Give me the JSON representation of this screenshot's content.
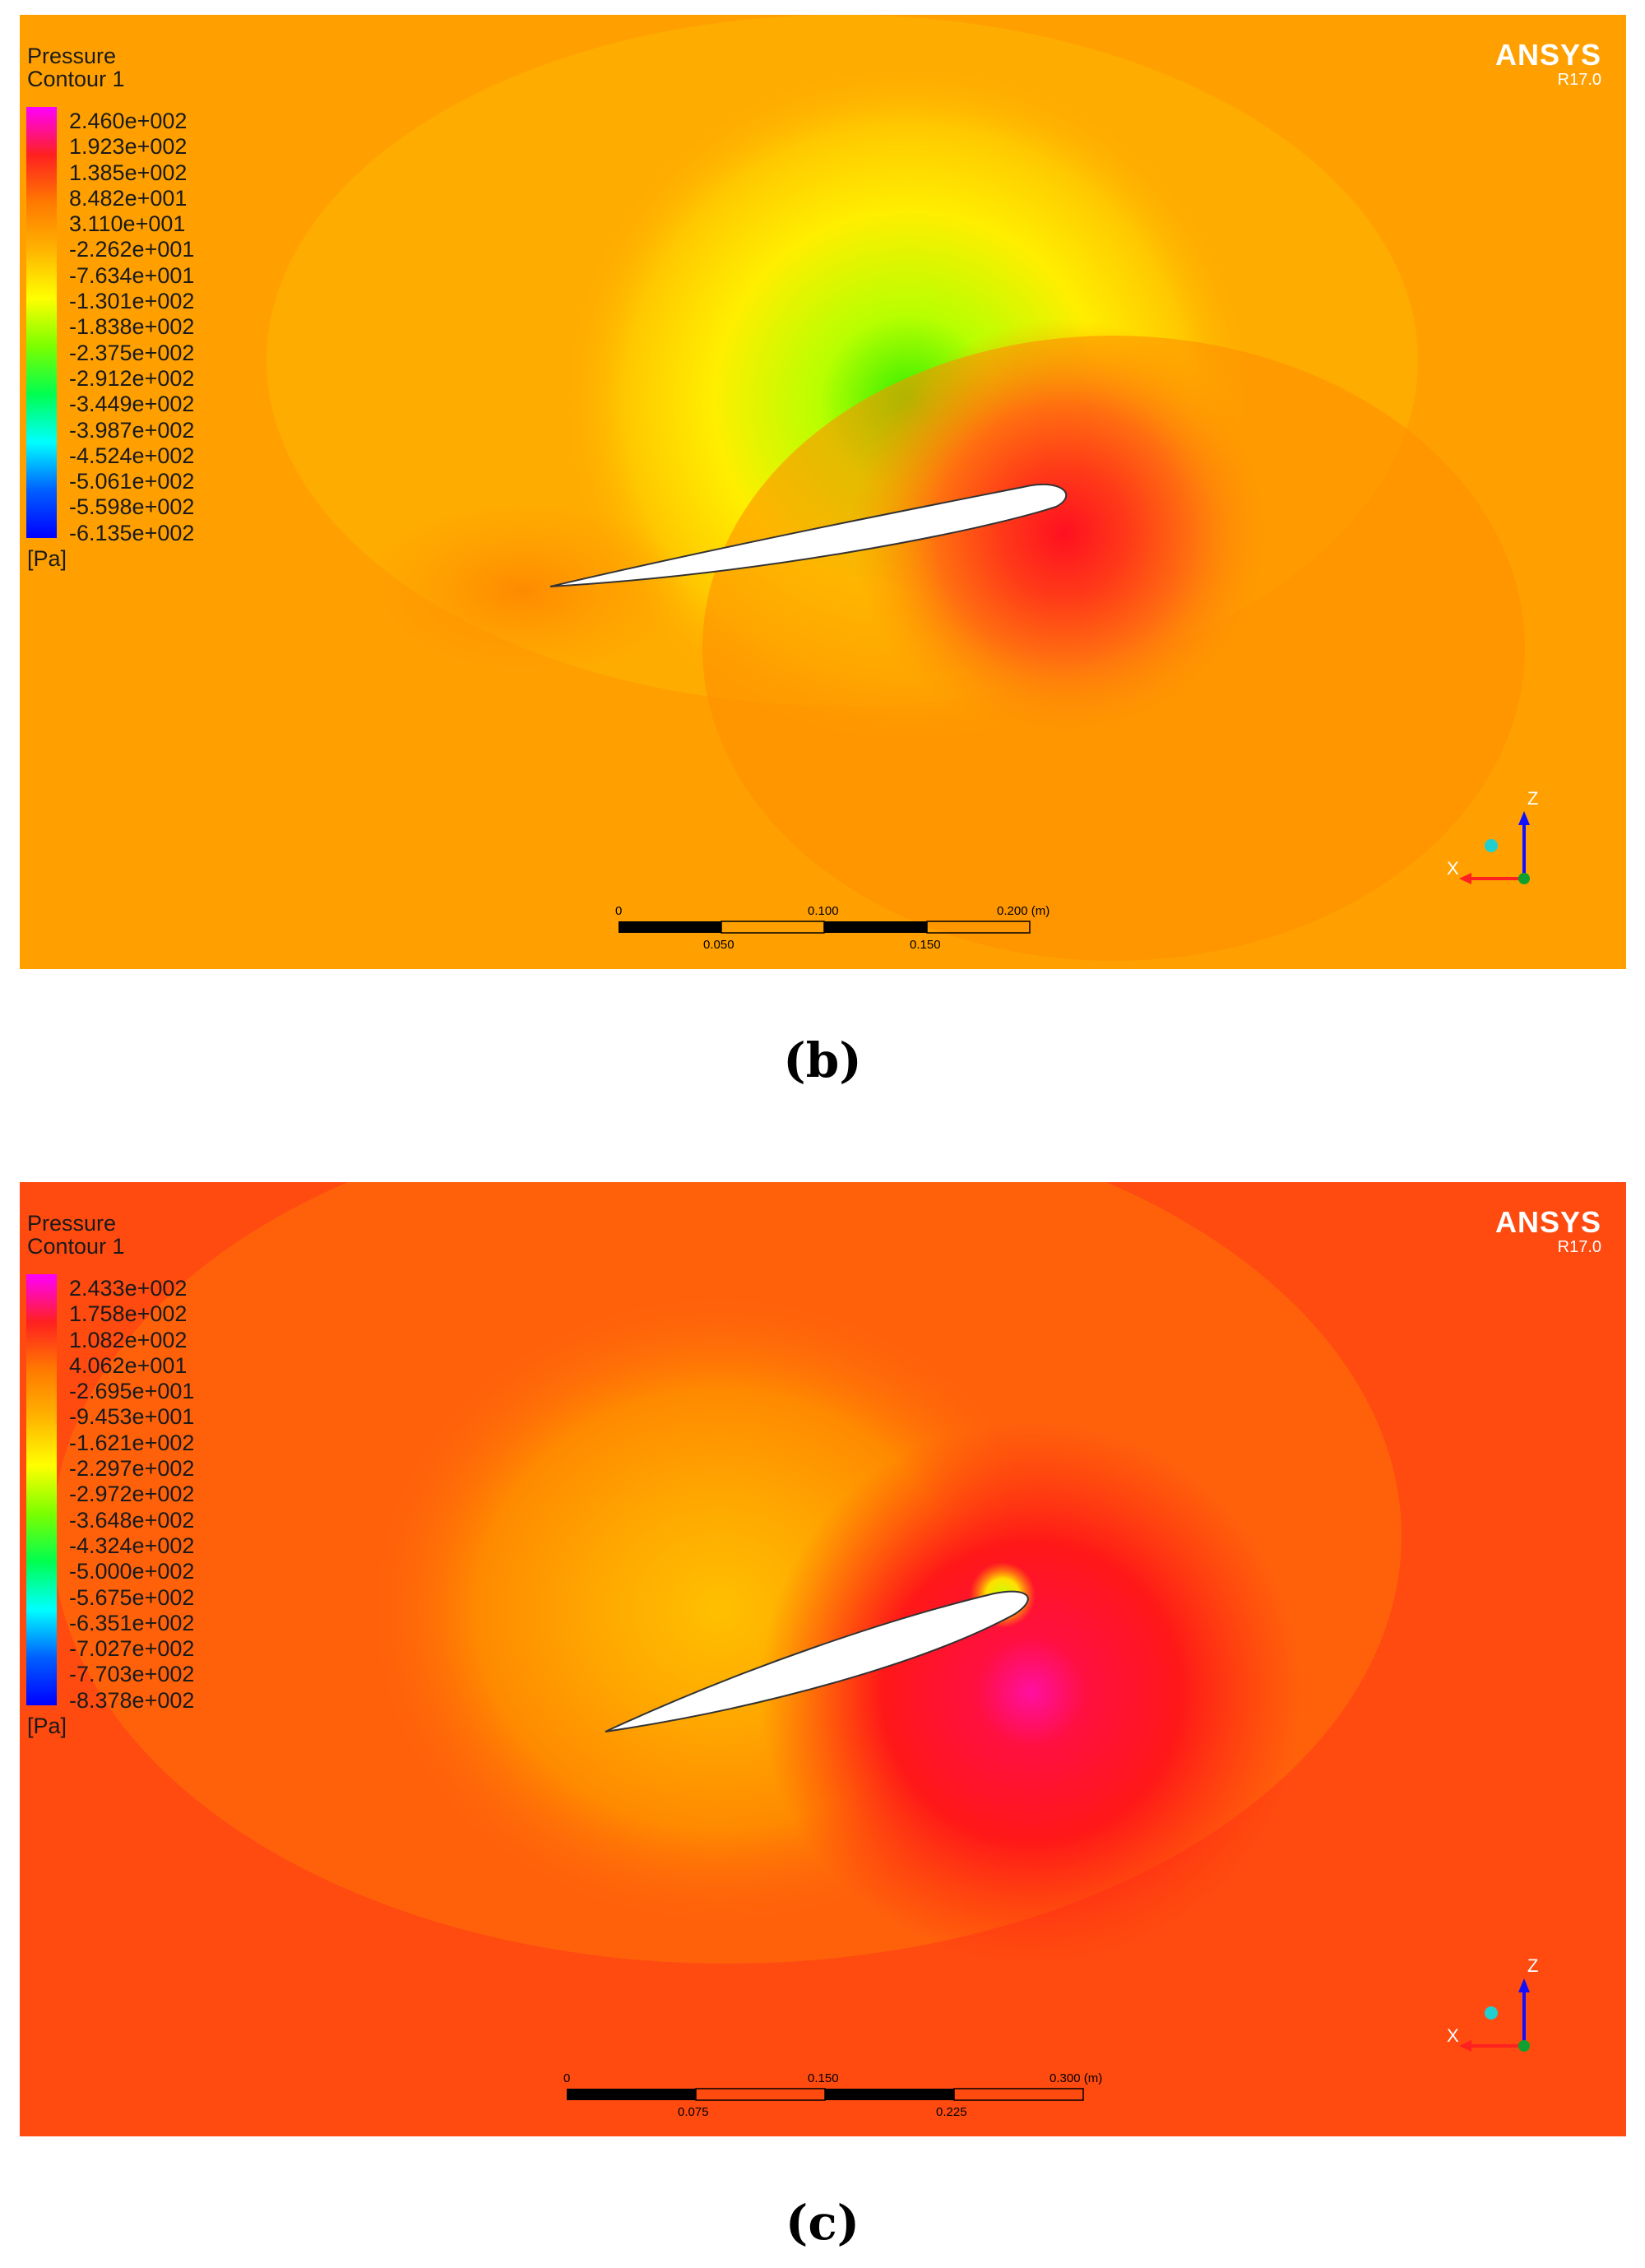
{
  "panels": [
    {
      "id": "b",
      "caption": "(b)",
      "legend": {
        "title_line1": "Pressure",
        "title_line2": "Contour 1",
        "unit": "[Pa]",
        "values": [
          "2.460e+002",
          "1.923e+002",
          "1.385e+002",
          "8.482e+001",
          "3.110e+001",
          "-2.262e+001",
          "-7.634e+001",
          "-1.301e+002",
          "-1.838e+002",
          "-2.375e+002",
          "-2.912e+002",
          "-3.449e+002",
          "-3.987e+002",
          "-4.524e+002",
          "-5.061e+002",
          "-5.598e+002",
          "-6.135e+002"
        ]
      },
      "brand": {
        "name": "ANSYS",
        "version": "R17.0"
      },
      "scale_bar": {
        "top_labels": [
          "0",
          "0.100",
          "0.200  (m)"
        ],
        "bottom_labels": [
          "0.050",
          "0.150"
        ]
      },
      "axes": {
        "z": "Z",
        "x": "X"
      }
    },
    {
      "id": "c",
      "caption": "(c)",
      "legend": {
        "title_line1": "Pressure",
        "title_line2": "Contour 1",
        "unit": "[Pa]",
        "values": [
          "2.433e+002",
          "1.758e+002",
          "1.082e+002",
          "4.062e+001",
          "-2.695e+001",
          "-9.453e+001",
          "-1.621e+002",
          "-2.297e+002",
          "-2.972e+002",
          "-3.648e+002",
          "-4.324e+002",
          "-5.000e+002",
          "-5.675e+002",
          "-6.351e+002",
          "-7.027e+002",
          "-7.703e+002",
          "-8.378e+002"
        ]
      },
      "brand": {
        "name": "ANSYS",
        "version": "R17.0"
      },
      "scale_bar": {
        "top_labels": [
          "0",
          "0.150",
          "0.300  (m)"
        ],
        "bottom_labels": [
          "0.075",
          "0.225"
        ]
      },
      "axes": {
        "z": "Z",
        "x": "X"
      }
    }
  ],
  "colors": {
    "colorbar_stops": [
      "#ff00ff",
      "#ff2020",
      "#ff7a00",
      "#ffb400",
      "#ffff00",
      "#7aff00",
      "#00ff50",
      "#00ffff",
      "#0060ff",
      "#0000ff"
    ],
    "b_background": "#ffa000",
    "c_background": "#ff4a10"
  }
}
